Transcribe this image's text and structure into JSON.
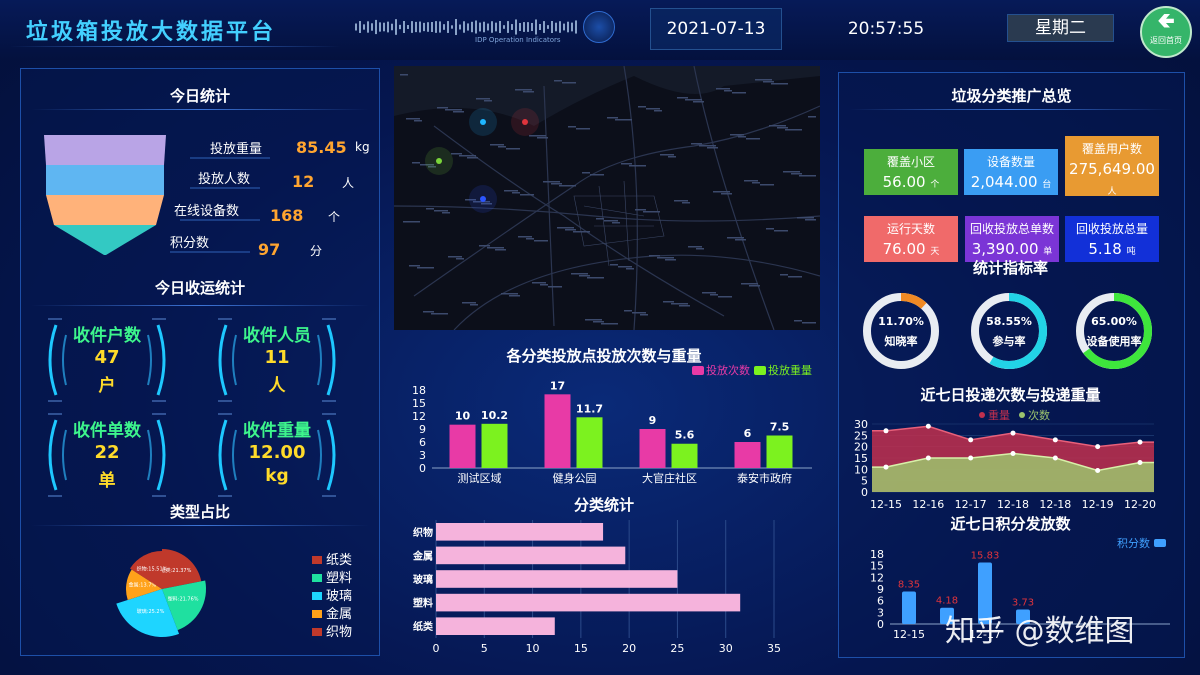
{
  "header": {
    "title": "垃圾箱投放大数据平台",
    "date": "2021-07-13",
    "time": "20:57:55",
    "weekday": "星期二",
    "back_label": "返回首页",
    "small_caption": "IDP Operation Indicators"
  },
  "today_stats": {
    "title": "今日统计",
    "items": [
      {
        "label": "投放重量",
        "value": "85.45",
        "unit": "kg"
      },
      {
        "label": "投放人数",
        "value": "12",
        "unit": "人"
      },
      {
        "label": "在线设备数",
        "value": "168",
        "unit": "个"
      },
      {
        "label": "积分数",
        "value": "97",
        "unit": "分"
      }
    ],
    "funnel_colors": [
      "#b9a4e6",
      "#5fb6f2",
      "#ffb27a",
      "#33c9c3"
    ]
  },
  "collection": {
    "title": "今日收运统计",
    "items": [
      {
        "label": "收件户数",
        "value": "47",
        "unit": "户"
      },
      {
        "label": "收件人员",
        "value": "11",
        "unit": "人"
      },
      {
        "label": "收件单数",
        "value": "22",
        "unit": "单"
      },
      {
        "label": "收件重量",
        "value": "12.00",
        "unit": "kg"
      }
    ]
  },
  "type_share": {
    "title": "类型占比",
    "legend": [
      {
        "name": "纸类",
        "color": "#c0392b"
      },
      {
        "name": "塑料",
        "color": "#1fe0a0"
      },
      {
        "name": "玻璃",
        "color": "#1ed5ff"
      },
      {
        "name": "金属",
        "color": "#ffa21a"
      },
      {
        "name": "织物",
        "color": "#c0392b"
      }
    ]
  },
  "map": {
    "bg": "#0c0f1a",
    "dots": [
      {
        "color": "#e0343c"
      },
      {
        "color": "#1fb6ff"
      },
      {
        "color": "#7ad63a"
      },
      {
        "color": "#2c56ff"
      }
    ]
  },
  "promo": {
    "title": "垃圾分类推广总览",
    "cards": [
      {
        "label": "覆盖小区",
        "value": "56.00",
        "unit": "个",
        "color": "#4cae3c"
      },
      {
        "label": "设备数量",
        "value": "2,044.00",
        "unit": "台",
        "color": "#3a9df3"
      },
      {
        "label": "覆盖用户数",
        "value": "275,649.00",
        "unit": "人",
        "color": "#e89a32"
      },
      {
        "label": "运行天数",
        "value": "76.00",
        "unit": "天",
        "color": "#f06a6a"
      },
      {
        "label": "回收投放总单数",
        "value": "3,390.00",
        "unit": "单",
        "color": "#7b35d6"
      },
      {
        "label": "回收投放总量",
        "value": "5.18",
        "unit": "吨",
        "color": "#1230d8"
      }
    ]
  },
  "indicators": {
    "title": "统计指标率",
    "rings": [
      {
        "value": "11.70%",
        "label": "知晓率",
        "pct": 11.7,
        "color": "#f08a24"
      },
      {
        "value": "58.55%",
        "label": "参与率",
        "pct": 58.55,
        "color": "#22d3e6"
      },
      {
        "value": "65.00%",
        "label": "设备使用率",
        "pct": 65,
        "color": "#3ee63c"
      }
    ]
  },
  "chart_data": [
    {
      "id": "counts_weights",
      "type": "bar",
      "title": "各分类投放点投放次数与重量",
      "categories": [
        "测试区域",
        "健身公园",
        "大官庄社区",
        "泰安市政府"
      ],
      "series": [
        {
          "name": "投放次数",
          "values": [
            10,
            17,
            9,
            6
          ],
          "color": "#e83aa6"
        },
        {
          "name": "投放重量",
          "values": [
            10.2,
            11.7,
            5.6,
            7.5
          ],
          "color": "#7cf21f"
        }
      ],
      "ylim": [
        0,
        18
      ],
      "yticks": [
        0,
        3,
        6,
        9,
        12,
        15,
        18
      ],
      "legend": "top-right",
      "grid": false
    },
    {
      "id": "category_stats",
      "type": "bar",
      "orientation": "horizontal",
      "title": "分类统计",
      "categories": [
        "织物",
        "金属",
        "玻璃",
        "塑料",
        "纸类"
      ],
      "values": [
        17.3,
        19.6,
        25,
        31.5,
        12.3
      ],
      "xlim": [
        0,
        35
      ],
      "xticks": [
        0,
        5,
        10,
        15,
        20,
        25,
        30,
        35
      ],
      "color": "#f5b3dc",
      "grid": true
    },
    {
      "id": "seven_day",
      "type": "area",
      "title": "近七日投递次数与投递重量",
      "x": [
        "12-15",
        "12-16",
        "12-17",
        "12-18",
        "12-18",
        "12-19",
        "12-20"
      ],
      "series": [
        {
          "name": "重量",
          "values": [
            27,
            29,
            23,
            26,
            23,
            20,
            22
          ],
          "color": "#c2304e"
        },
        {
          "name": "次数",
          "values": [
            11,
            15,
            15,
            17,
            15,
            9.5,
            13
          ],
          "color": "#9cc46d"
        }
      ],
      "ylim": [
        0,
        30
      ],
      "yticks": [
        0,
        5,
        10,
        15,
        20,
        25,
        30
      ],
      "legend": "top-left"
    },
    {
      "id": "points",
      "type": "bar",
      "title": "近七日积分发放数",
      "x": [
        "12-15",
        "12-16",
        "12-17",
        "12-18",
        "12-19",
        "12-20"
      ],
      "series": [
        {
          "name": "积分数",
          "values": [
            8.35,
            4.18,
            15.83,
            3.73,
            null,
            null
          ],
          "color": "#3fa0ff"
        }
      ],
      "ylim": [
        0,
        18
      ],
      "yticks": [
        0,
        3,
        6,
        9,
        12,
        15,
        18
      ],
      "visible_x_labels": [
        "12-15",
        "12-17"
      ],
      "legend": "top-right"
    },
    {
      "id": "type_pie",
      "type": "pie",
      "title": "类型占比",
      "labels": [
        "纸类",
        "塑料",
        "玻璃",
        "金属",
        "织物"
      ],
      "values": [
        21.37,
        21.76,
        25.2,
        13.7,
        15.51
      ],
      "colors": [
        "#c0392b",
        "#1fe0a0",
        "#1ed5ff",
        "#ffa21a",
        "#c0392b"
      ],
      "legend": "right"
    }
  ],
  "watermark": "知乎 @数维图"
}
